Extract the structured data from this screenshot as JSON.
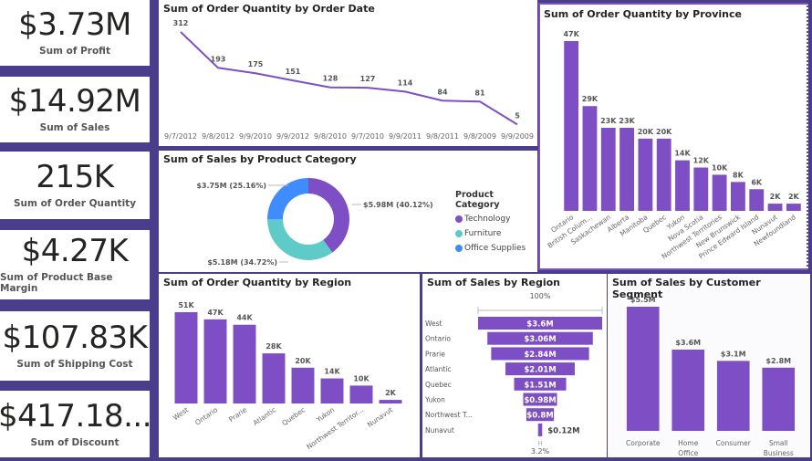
{
  "kpis": [
    {
      "value": "$3.73M",
      "label": "Sum of Profit"
    },
    {
      "value": "$14.92M",
      "label": "Sum of Sales"
    },
    {
      "value": "215K",
      "label": "Sum of Order Quantity"
    },
    {
      "value": "$4.27K",
      "label": "Sum of Product Base Margin"
    },
    {
      "value": "$107.83K",
      "label": "Sum of Shipping Cost"
    },
    {
      "value": "$417.18...",
      "label": "Sum of Discount"
    }
  ],
  "colors": {
    "accent": "#7e4fc4",
    "teal": "#5ecbc8",
    "blue": "#3f8cff",
    "frame": "#4a3d8c"
  },
  "chart_data": [
    {
      "id": "order-date",
      "type": "line",
      "title": "Sum of Order Quantity by Order Date",
      "categories": [
        "9/7/2012",
        "9/8/2012",
        "9/9/2010",
        "9/9/2012",
        "9/8/2010",
        "9/7/2010",
        "9/9/2011",
        "9/8/2011",
        "9/8/2009",
        "9/9/2009"
      ],
      "values": [
        312,
        193,
        175,
        151,
        128,
        127,
        114,
        84,
        81,
        5
      ],
      "labels": [
        "312",
        "193",
        "175",
        "151",
        "128",
        "127",
        "114",
        "84",
        "81",
        "5"
      ],
      "ylim": [
        0,
        312
      ]
    },
    {
      "id": "product-category",
      "type": "pie",
      "title": "Sum of Sales by Product Category",
      "legend_title": "Product Category",
      "slices": [
        {
          "name": "Technology",
          "value": 5.98,
          "label": "$5.98M (40.12%)",
          "color": "#7e4fc4"
        },
        {
          "name": "Furniture",
          "value": 5.18,
          "label": "$5.18M (34.72%)",
          "color": "#5ecbc8"
        },
        {
          "name": "Office Supplies",
          "value": 3.75,
          "label": "$3.75M (25.16%)",
          "color": "#3f8cff"
        }
      ],
      "legend": "right"
    },
    {
      "id": "province",
      "type": "bar",
      "title": "Sum of Order Quantity by Province",
      "categories": [
        "Ontario",
        "British Colum...",
        "Saskachewan",
        "Alberta",
        "Manitoba",
        "Quebec",
        "Yukon",
        "Nova Scotia",
        "Northwest Territories",
        "New Brunswick",
        "Prince Edward Island",
        "Nunavut",
        "Newfoundland"
      ],
      "values": [
        47,
        29,
        23,
        23,
        20,
        20,
        14,
        12,
        10,
        8,
        6,
        2,
        2
      ],
      "labels": [
        "47K",
        "29K",
        "23K",
        "23K",
        "20K",
        "20K",
        "14K",
        "12K",
        "10K",
        "8K",
        "6K",
        "2K",
        "2K"
      ],
      "unit": "K"
    },
    {
      "id": "region-qty",
      "type": "bar",
      "title": "Sum of Order Quantity by Region",
      "categories": [
        "West",
        "Ontario",
        "Prarie",
        "Atlantic",
        "Quebec",
        "Yukon",
        "Northwest Territor...",
        "Nunavut"
      ],
      "values": [
        51,
        47,
        44,
        28,
        20,
        14,
        10,
        2
      ],
      "labels": [
        "51K",
        "47K",
        "44K",
        "28K",
        "20K",
        "14K",
        "10K",
        "2K"
      ],
      "unit": "K"
    },
    {
      "id": "region-sales",
      "type": "bar",
      "subtype": "funnel",
      "title": "Sum of Sales by Region",
      "top_label": "100%",
      "bottom_label": "3.2%",
      "categories": [
        "West",
        "Ontario",
        "Prarie",
        "Atlantic",
        "Quebec",
        "Yukon",
        "Northwest T...",
        "Nunavut"
      ],
      "values": [
        3.6,
        3.06,
        2.84,
        2.01,
        1.51,
        0.98,
        0.8,
        0.12
      ],
      "labels": [
        "$3.6M",
        "$3.06M",
        "$2.84M",
        "$2.01M",
        "$1.51M",
        "$0.98M",
        "$0.8M",
        "$0.12M"
      ]
    },
    {
      "id": "segment",
      "type": "bar",
      "title": "Sum of Sales by Customer Segment",
      "categories": [
        [
          "Corporate"
        ],
        [
          "Home",
          "Office"
        ],
        [
          "Consumer"
        ],
        [
          "Small",
          "Business"
        ]
      ],
      "values": [
        5.5,
        3.6,
        3.1,
        2.8
      ],
      "labels": [
        "$5.5M",
        "$3.6M",
        "$3.1M",
        "$2.8M"
      ]
    }
  ]
}
